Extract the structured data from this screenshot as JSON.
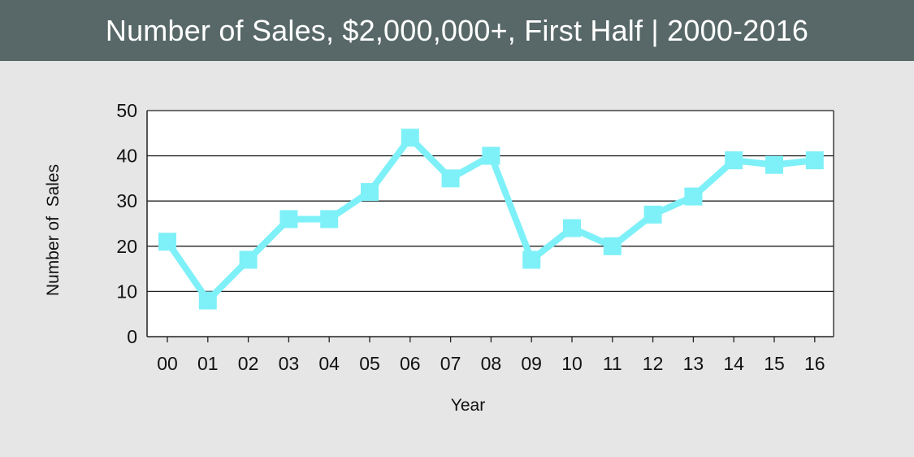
{
  "colors": {
    "header_bg": "#586868",
    "header_text": "#ffffff",
    "page_bg": "#e6e6e6",
    "plot_bg": "#ffffff",
    "series": "#7ef0f8",
    "gridline": "#222222"
  },
  "chart_data": {
    "type": "line",
    "title": "Number of Sales, $2,000,000+, First Half | 2000-2016",
    "xlabel": "Year",
    "ylabel": "Number of  Sales",
    "categories": [
      "00",
      "01",
      "02",
      "03",
      "04",
      "05",
      "06",
      "07",
      "08",
      "09",
      "10",
      "11",
      "12",
      "13",
      "14",
      "15",
      "16"
    ],
    "values": [
      21,
      8,
      17,
      26,
      26,
      32,
      44,
      35,
      40,
      17,
      24,
      20,
      27,
      31,
      39,
      38,
      39
    ],
    "ylim": [
      0,
      50
    ],
    "yticks": [
      0,
      10,
      20,
      30,
      40,
      50
    ],
    "grid": "horizontal",
    "marker": "square",
    "legend": "none"
  }
}
